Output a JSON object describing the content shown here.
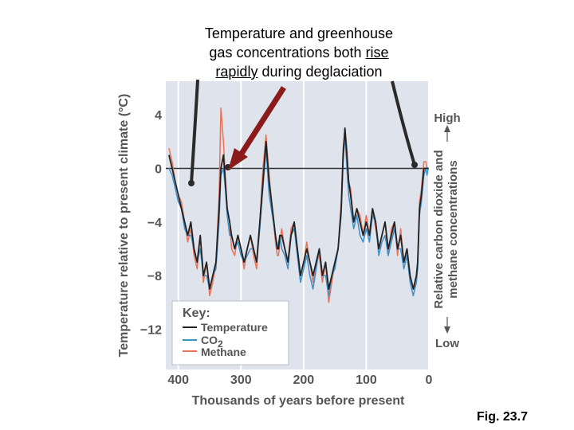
{
  "annotation": {
    "line1": "Temperature and greenhouse",
    "line2a": "gas concentrations both ",
    "line2b": "rise",
    "line3a": "rapidly",
    "line3b": " during deglaciation"
  },
  "figure_label": "Fig. 23.7",
  "chart_data": {
    "type": "line",
    "xlabel": "Thousands of years before present",
    "ylabel": "Temperature relative to present climate (°C)",
    "y2label_line1": "Relative carbon dioxide and",
    "y2label_line2": "methane concentrations",
    "y2_high": "High",
    "y2_low": "Low",
    "xlim": [
      420,
      0
    ],
    "ylim": [
      -15,
      6.5
    ],
    "xticks": [
      400,
      300,
      200,
      100,
      0
    ],
    "xtick_labels": [
      "400",
      "300",
      "200",
      "100",
      "0"
    ],
    "yticks": [
      4,
      0,
      -4,
      -8,
      -12
    ],
    "ytick_labels": [
      "4",
      "0",
      "−4",
      "−8",
      "−12"
    ],
    "reference_line_y": 0,
    "legend": {
      "title": "Key:",
      "position": "bottom-left"
    },
    "colors": {
      "Temperature": "#222222",
      "CO2": "#3d8fc8",
      "Methane": "#e8735a"
    },
    "series": [
      {
        "name": "Temperature",
        "legend_label": "Temperature",
        "x": [
          415,
          410,
          405,
          400,
          395,
          390,
          385,
          380,
          375,
          370,
          365,
          360,
          355,
          350,
          345,
          340,
          335,
          332,
          328,
          325,
          322,
          318,
          315,
          310,
          305,
          300,
          295,
          290,
          285,
          280,
          275,
          270,
          265,
          260,
          255,
          250,
          245,
          242,
          240,
          238,
          235,
          230,
          225,
          220,
          215,
          210,
          205,
          200,
          195,
          190,
          185,
          180,
          175,
          170,
          165,
          160,
          155,
          150,
          145,
          140,
          137,
          134,
          131,
          128,
          125,
          120,
          115,
          110,
          105,
          100,
          95,
          90,
          85,
          80,
          75,
          70,
          65,
          60,
          55,
          50,
          45,
          40,
          35,
          30,
          25,
          20,
          18,
          15,
          12,
          10,
          8,
          5,
          3,
          1
        ],
        "y": [
          1,
          0,
          -1,
          -2,
          -3,
          -4,
          -5,
          -4,
          -6,
          -7,
          -5,
          -8,
          -7,
          -9,
          -8,
          -7,
          -3,
          0,
          1,
          -1,
          -3,
          -4,
          -5,
          -6,
          -5,
          -6,
          -7,
          -6,
          -5,
          -6,
          -7,
          -4,
          -1,
          2,
          -1,
          -3,
          -5,
          -6,
          -6,
          -5,
          -5,
          -6,
          -7,
          -5,
          -4,
          -6,
          -8,
          -7,
          -6,
          -7,
          -8,
          -7,
          -6,
          -8,
          -7,
          -9,
          -8,
          -7,
          -6,
          -3,
          1,
          3,
          1,
          -1,
          -2,
          -4,
          -3,
          -4,
          -5,
          -4,
          -5,
          -3,
          -4,
          -6,
          -5,
          -4,
          -6,
          -5,
          -4,
          -6,
          -5,
          -7,
          -6,
          -8,
          -9,
          -8,
          -7,
          -3,
          -2,
          -1,
          0,
          0,
          0,
          0
        ]
      },
      {
        "name": "CO2",
        "legend_label": "CO",
        "legend_sub": "2",
        "x": [
          415,
          410,
          405,
          400,
          395,
          390,
          385,
          380,
          375,
          370,
          365,
          360,
          355,
          350,
          345,
          340,
          335,
          332,
          328,
          325,
          322,
          318,
          315,
          310,
          305,
          300,
          295,
          290,
          285,
          280,
          275,
          270,
          265,
          260,
          255,
          250,
          245,
          242,
          240,
          238,
          235,
          230,
          225,
          220,
          215,
          210,
          205,
          200,
          195,
          190,
          185,
          180,
          175,
          170,
          165,
          160,
          155,
          150,
          145,
          140,
          137,
          134,
          131,
          128,
          125,
          120,
          115,
          110,
          105,
          100,
          95,
          90,
          85,
          80,
          75,
          70,
          65,
          60,
          55,
          50,
          45,
          40,
          35,
          30,
          25,
          20,
          18,
          15,
          12,
          10,
          8,
          5,
          3,
          1
        ],
        "y": [
          0,
          -0.5,
          -1.5,
          -2.5,
          -3,
          -4.5,
          -5,
          -5,
          -6,
          -7,
          -6,
          -8,
          -8,
          -9,
          -8,
          -7.5,
          -4,
          -0.5,
          0,
          -1.5,
          -3.5,
          -5,
          -5,
          -6,
          -5.5,
          -6.5,
          -7,
          -6.5,
          -6,
          -6,
          -7,
          -4.5,
          -1.5,
          1.5,
          -2,
          -3.5,
          -5,
          -6,
          -5.5,
          -5,
          -6,
          -6.5,
          -7.5,
          -5,
          -4.5,
          -6.5,
          -8.5,
          -7.5,
          -6.5,
          -8,
          -9,
          -7.5,
          -6,
          -8,
          -8,
          -9.5,
          -8,
          -7.5,
          -6,
          -3.5,
          0.5,
          2.5,
          0,
          -2,
          -3,
          -4.5,
          -3.5,
          -5,
          -5.5,
          -4.5,
          -5.5,
          -3.5,
          -4,
          -6.5,
          -5.5,
          -5,
          -6.5,
          -5.5,
          -4.5,
          -6,
          -6,
          -7.5,
          -6.5,
          -8.5,
          -9.5,
          -8.5,
          -7.5,
          -3.5,
          -2.5,
          -1.5,
          -0.5,
          0,
          -0.5,
          0
        ]
      },
      {
        "name": "Methane",
        "legend_label": "Methane",
        "x": [
          415,
          410,
          405,
          400,
          395,
          390,
          385,
          380,
          375,
          370,
          365,
          360,
          355,
          350,
          345,
          340,
          335,
          332,
          328,
          325,
          322,
          318,
          315,
          310,
          305,
          300,
          295,
          290,
          285,
          280,
          275,
          270,
          265,
          260,
          255,
          250,
          245,
          242,
          240,
          238,
          235,
          230,
          225,
          220,
          215,
          210,
          205,
          200,
          195,
          190,
          185,
          180,
          175,
          170,
          165,
          160,
          155,
          150,
          145,
          140,
          137,
          134,
          131,
          128,
          125,
          120,
          115,
          110,
          105,
          100,
          95,
          90,
          85,
          80,
          75,
          70,
          65,
          60,
          55,
          50,
          45,
          40,
          35,
          30,
          25,
          20,
          18,
          15,
          12,
          10,
          8,
          5,
          3,
          1
        ],
        "y": [
          1.5,
          0.5,
          -1,
          -2,
          -2.5,
          -4,
          -5.5,
          -4.5,
          -6.5,
          -7.5,
          -5,
          -8.5,
          -7,
          -9.5,
          -8.5,
          -7,
          -2,
          4.5,
          2,
          -0.5,
          -3,
          -4,
          -6,
          -6.5,
          -5,
          -6,
          -7.5,
          -6,
          -5,
          -6.5,
          -7.5,
          -4,
          0,
          2.5,
          -0.5,
          -3,
          -5.5,
          -6.5,
          -6.5,
          -5.5,
          -4.5,
          -6,
          -7,
          -4.5,
          -4,
          -6,
          -8,
          -7,
          -5.5,
          -7,
          -8.5,
          -7,
          -6.5,
          -8.5,
          -7,
          -10,
          -8.5,
          -7,
          -6,
          -2.5,
          1.5,
          3,
          1.5,
          -1,
          -1.5,
          -4,
          -3,
          -3.5,
          -5,
          -3.5,
          -5,
          -3,
          -4.5,
          -6,
          -5,
          -4,
          -6.5,
          -4.5,
          -4,
          -6.5,
          -4.5,
          -7,
          -6,
          -8,
          -9,
          -8.5,
          -7,
          -2.5,
          -1.5,
          -0.5,
          0.5,
          0.5,
          0,
          0
        ]
      }
    ]
  }
}
